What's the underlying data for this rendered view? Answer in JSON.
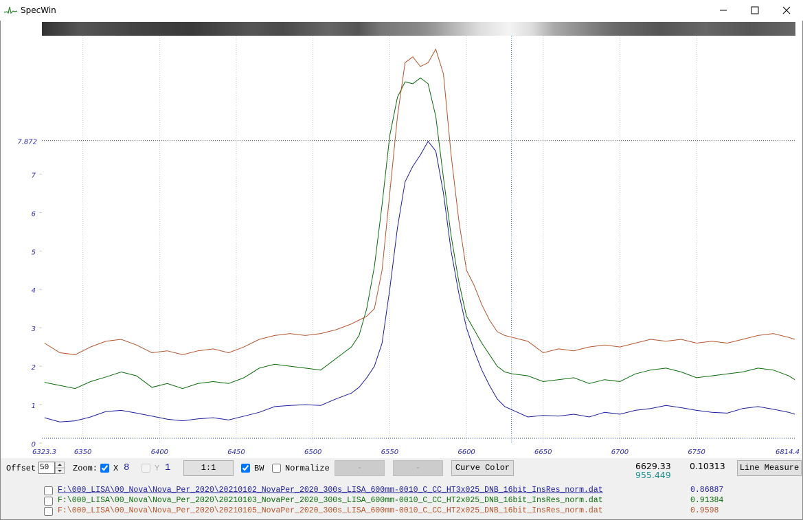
{
  "window": {
    "title": "SpecWin"
  },
  "chart_data": {
    "type": "line",
    "xlim": [
      6323.3,
      6814.4
    ],
    "xticks": [
      6323.3,
      6350,
      6400,
      6450,
      6500,
      6550,
      6600,
      6650,
      6700,
      6750,
      6814.4
    ],
    "ylim": [
      0,
      10.6
    ],
    "yticks": [
      0,
      1,
      2,
      3,
      4,
      5,
      6,
      7
    ],
    "grid": true,
    "cursor_x": 6629.33,
    "cursor_y": 7.872,
    "x": [
      6325,
      6335,
      6345,
      6355,
      6365,
      6375,
      6385,
      6395,
      6405,
      6415,
      6425,
      6435,
      6445,
      6455,
      6465,
      6475,
      6485,
      6495,
      6505,
      6515,
      6525,
      6530,
      6535,
      6540,
      6545,
      6550,
      6555,
      6560,
      6565,
      6570,
      6575,
      6580,
      6585,
      6590,
      6595,
      6600,
      6605,
      6610,
      6615,
      6620,
      6625,
      6630,
      6640,
      6650,
      6660,
      6670,
      6680,
      6690,
      6700,
      6710,
      6720,
      6730,
      6740,
      6750,
      6760,
      6770,
      6780,
      6790,
      6800,
      6810,
      6814
    ],
    "series": [
      {
        "name": "F:\\000_LISA\\00_Nova\\Nova_Per_2020\\20210102_NovaPer_2020_300s_LISA_600mm-0010_C_CC_HT3x025_DNB_16bit_InsRes_norm.dat",
        "color": "#1c1c9c",
        "ratio": 0.86887,
        "values": [
          0.66,
          0.55,
          0.58,
          0.68,
          0.82,
          0.85,
          0.78,
          0.7,
          0.62,
          0.58,
          0.63,
          0.66,
          0.6,
          0.7,
          0.8,
          0.95,
          0.98,
          1.0,
          0.98,
          1.15,
          1.3,
          1.45,
          1.7,
          2.0,
          2.6,
          4.0,
          5.6,
          6.8,
          7.2,
          7.5,
          7.85,
          7.6,
          6.5,
          5.0,
          3.9,
          3.0,
          2.4,
          1.9,
          1.5,
          1.15,
          0.95,
          0.86,
          0.68,
          0.72,
          0.7,
          0.75,
          0.68,
          0.8,
          0.75,
          0.85,
          0.9,
          0.98,
          0.92,
          0.85,
          0.8,
          0.78,
          0.9,
          0.95,
          0.88,
          0.8,
          0.75
        ]
      },
      {
        "name": "F:\\000_LISA\\00_Nova\\Nova_Per_2020\\20210103_NovaPer_2020_300s_LISA_600mm-0010_C_CC_HT2x025_DNB_16bit_InsRes_norm.dat",
        "color": "#0a6a0a",
        "ratio": 0.91384,
        "values": [
          1.58,
          1.5,
          1.42,
          1.6,
          1.72,
          1.85,
          1.75,
          1.45,
          1.55,
          1.42,
          1.55,
          1.6,
          1.55,
          1.7,
          1.95,
          2.05,
          2.0,
          1.95,
          1.9,
          2.2,
          2.5,
          2.8,
          3.5,
          4.6,
          6.2,
          8.0,
          9.0,
          9.4,
          9.35,
          9.5,
          9.35,
          8.5,
          6.9,
          5.4,
          4.2,
          3.3,
          2.95,
          2.6,
          2.3,
          2.0,
          1.85,
          1.8,
          1.75,
          1.6,
          1.65,
          1.7,
          1.55,
          1.65,
          1.6,
          1.8,
          1.9,
          1.95,
          1.85,
          1.7,
          1.75,
          1.8,
          1.85,
          1.95,
          1.9,
          1.75,
          1.65
        ]
      },
      {
        "name": "F:\\000_LISA\\00_Nova\\Nova_Per_2020\\20210105_NovaPer_2020_300s_LISA_600mm-0010_C_CC_HT2x025_DNB_16bit_InsRes_norm.dat",
        "color": "#b4532c",
        "ratio": 0.9598,
        "values": [
          2.6,
          2.35,
          2.3,
          2.5,
          2.65,
          2.7,
          2.55,
          2.35,
          2.4,
          2.3,
          2.4,
          2.45,
          2.35,
          2.5,
          2.7,
          2.8,
          2.85,
          2.8,
          2.85,
          2.95,
          3.1,
          3.2,
          3.3,
          3.5,
          4.5,
          6.5,
          8.5,
          9.9,
          10.05,
          9.8,
          9.9,
          10.25,
          9.6,
          7.5,
          5.8,
          4.5,
          4.1,
          3.6,
          3.2,
          2.9,
          2.8,
          2.75,
          2.65,
          2.35,
          2.45,
          2.4,
          2.5,
          2.55,
          2.5,
          2.6,
          2.7,
          2.65,
          2.7,
          2.6,
          2.65,
          2.6,
          2.7,
          2.8,
          2.85,
          2.75,
          2.7
        ]
      }
    ]
  },
  "controls": {
    "offset_label": "Offset",
    "offset_value": "50",
    "zoom_label": "Zoom:",
    "x_label": "X",
    "x_zoom": "8",
    "y_label": "Y",
    "y_zoom": "1",
    "ratio_button": "1:1",
    "bw_label": "BW",
    "normalize_label": "Normalize",
    "button_a": "-",
    "button_b": "-",
    "curve_color": "Curve Color",
    "line_measure": "Line Measure"
  },
  "readout": {
    "wavelength": 6629.33,
    "intensity": 955.449,
    "value": 0.10313
  }
}
